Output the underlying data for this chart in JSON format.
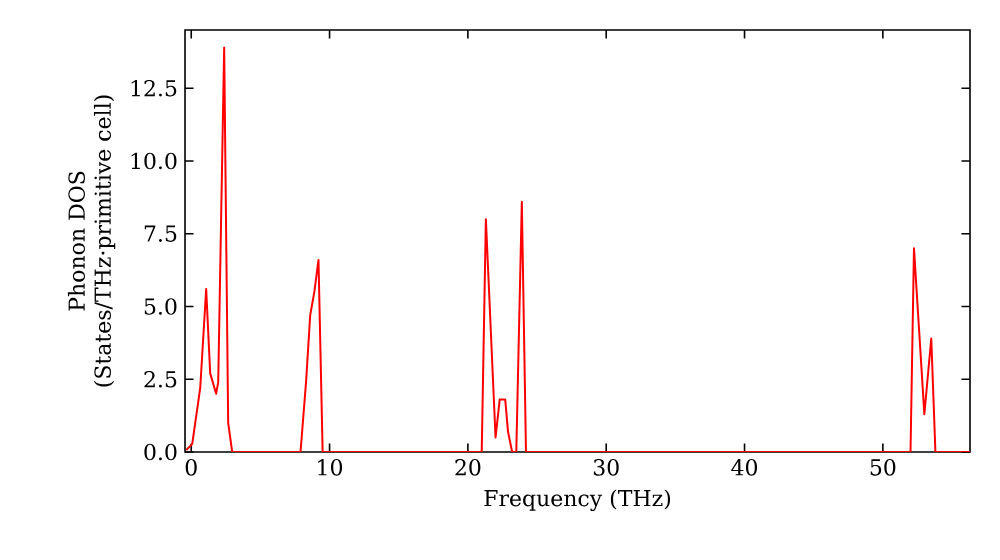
{
  "chart_data": {
    "type": "line",
    "xlabel": "Frequency (THz)",
    "ylabel": "Phonon DOS\n(States/THz·primitive cell)",
    "series": [
      {
        "color": "#ff0000",
        "x": [
          -0.36,
          0.07,
          0.65,
          1.08,
          1.37,
          1.8,
          1.95,
          2.38,
          2.67,
          2.96,
          7.9,
          8.3,
          8.6,
          8.9,
          9.2,
          9.5,
          21.0,
          21.3,
          22.0,
          22.3,
          22.7,
          22.9,
          23.2,
          23.5,
          23.9,
          24.2,
          52.0,
          52.25,
          53.0,
          53.5,
          53.8,
          56.3
        ],
        "values": [
          0.07,
          0.27,
          2.2,
          5.6,
          2.7,
          2.0,
          2.4,
          13.9,
          1.0,
          0,
          0,
          2.4,
          4.7,
          5.5,
          6.6,
          0,
          0,
          8.0,
          0.5,
          1.8,
          1.8,
          0.7,
          0,
          0,
          8.6,
          0,
          0,
          7.0,
          1.3,
          3.9,
          0,
          0
        ]
      }
    ],
    "xlim": [
      -0.45,
      56.3
    ],
    "ylim": [
      0,
      14.5
    ],
    "xticks": [
      0,
      10,
      20,
      30,
      40,
      50
    ],
    "yticks": [
      {
        "value": 0,
        "label": "0.0"
      },
      {
        "value": 2.5,
        "label": "2.5"
      },
      {
        "value": 5,
        "label": "5.0"
      },
      {
        "value": 7.5,
        "label": "7.5"
      },
      {
        "value": 10,
        "label": "10.0"
      },
      {
        "value": 12.5,
        "label": "12.5"
      }
    ],
    "grid": false,
    "marker": "none",
    "line_style": "solid"
  }
}
